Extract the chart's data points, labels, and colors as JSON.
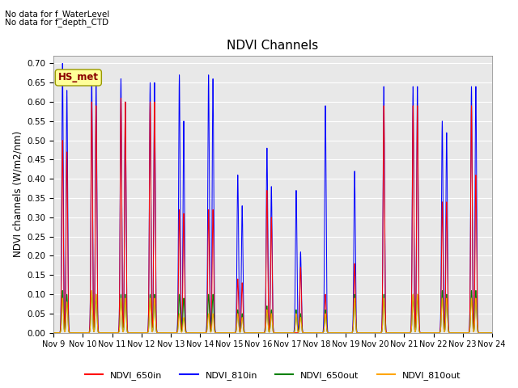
{
  "title": "NDVI Channels",
  "ylabel": "NDVI channels (W/m2/nm)",
  "ylim": [
    0.0,
    0.72
  ],
  "yticks": [
    0.0,
    0.05,
    0.1,
    0.15,
    0.2,
    0.25,
    0.3,
    0.35,
    0.4,
    0.45,
    0.5,
    0.55,
    0.6,
    0.65,
    0.7
  ],
  "bg_color": "#e8e8e8",
  "annotations": [
    "No data for f_WaterLevel",
    "No data for f_depth_CTD"
  ],
  "legend_box_label": "HS_met",
  "legend_box_color": "#ffff99",
  "legend_box_text_color": "#8b0000",
  "lines": [
    {
      "label": "NDVI_650in",
      "color": "red"
    },
    {
      "label": "NDVI_810in",
      "color": "blue"
    },
    {
      "label": "NDVI_650out",
      "color": "green"
    },
    {
      "label": "NDVI_810out",
      "color": "orange"
    }
  ],
  "xtick_labels": [
    "Nov 9",
    "Nov 10",
    "Nov 11",
    "Nov 12",
    "Nov 13",
    "Nov 14",
    "Nov 15",
    "Nov 16",
    "Nov 17",
    "Nov 18",
    "Nov 19",
    "Nov 20",
    "Nov 21",
    "Nov 22",
    "Nov 23",
    "Nov 24"
  ],
  "figsize": [
    6.4,
    4.8
  ],
  "dpi": 100,
  "n_days": 15,
  "peaks": {
    "810in": [
      0.7,
      0.67,
      0.66,
      0.65,
      0.67,
      0.67,
      0.41,
      0.48,
      0.37,
      0.59,
      0.42,
      0.64,
      0.64,
      0.55,
      0.64
    ],
    "650in": [
      0.5,
      0.6,
      0.61,
      0.6,
      0.32,
      0.32,
      0.14,
      0.37,
      0.0,
      0.1,
      0.18,
      0.59,
      0.59,
      0.34,
      0.59
    ],
    "650out": [
      0.11,
      0.11,
      0.1,
      0.1,
      0.1,
      0.1,
      0.06,
      0.07,
      0.06,
      0.06,
      0.1,
      0.1,
      0.1,
      0.11,
      0.11
    ],
    "810out": [
      0.09,
      0.11,
      0.09,
      0.09,
      0.05,
      0.05,
      0.05,
      0.06,
      0.05,
      0.05,
      0.09,
      0.09,
      0.1,
      0.09,
      0.09
    ]
  },
  "peak2": {
    "810in": [
      0.63,
      0.65,
      0.6,
      0.65,
      0.55,
      0.66,
      0.33,
      0.38,
      0.21,
      0.0,
      0.0,
      0.0,
      0.64,
      0.52,
      0.64
    ],
    "650in": [
      0.47,
      0.59,
      0.6,
      0.6,
      0.31,
      0.32,
      0.13,
      0.3,
      0.17,
      0.0,
      0.0,
      0.0,
      0.59,
      0.34,
      0.41
    ],
    "650out": [
      0.1,
      0.1,
      0.1,
      0.1,
      0.09,
      0.1,
      0.05,
      0.06,
      0.05,
      0.0,
      0.0,
      0.0,
      0.1,
      0.1,
      0.11
    ],
    "810out": [
      0.08,
      0.1,
      0.09,
      0.09,
      0.04,
      0.05,
      0.04,
      0.05,
      0.04,
      0.0,
      0.0,
      0.0,
      0.1,
      0.09,
      0.09
    ]
  }
}
